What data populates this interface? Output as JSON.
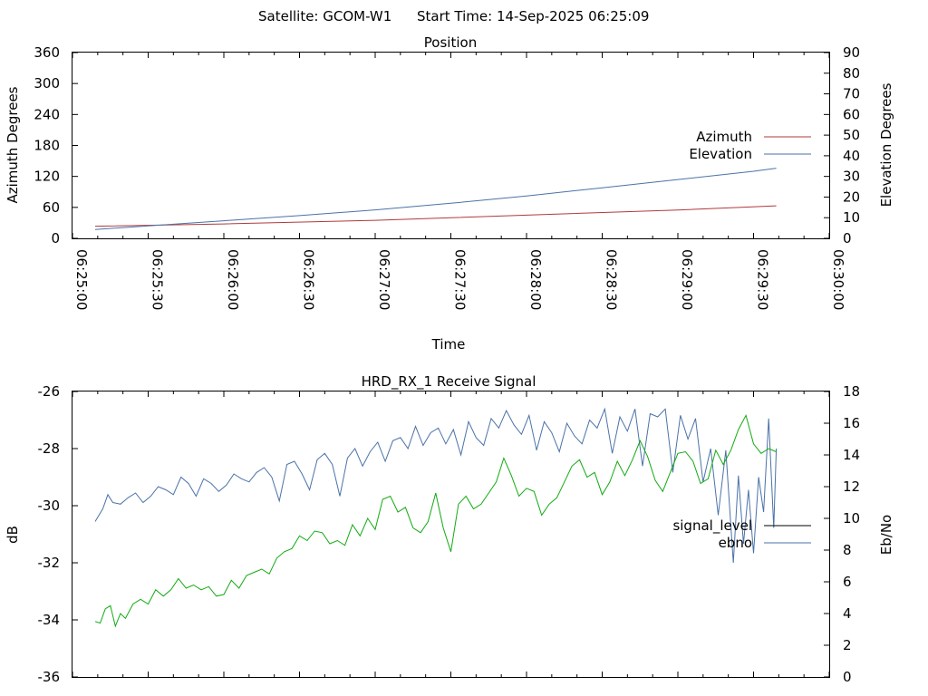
{
  "header": {
    "satellite_text": "Satellite: GCOM-W1",
    "start_time_text": "Start Time: 14-Sep-2025 06:25:09"
  },
  "chart_data": [
    {
      "type": "line",
      "title": "Position",
      "xlabel": "Time",
      "ylabel": "Azimuth Degrees",
      "y2label": "Elevation Degrees",
      "x_ticks": [
        "06:25:00",
        "06:25:30",
        "06:26:00",
        "06:26:30",
        "06:27:00",
        "06:27:30",
        "06:28:00",
        "06:28:30",
        "06:29:00",
        "06:29:30",
        "06:30:00"
      ],
      "xlim_sec": [
        0,
        300
      ],
      "ylim": [
        0,
        360
      ],
      "y_ticks": [
        0,
        60,
        120,
        180,
        240,
        300,
        360
      ],
      "y2lim": [
        0,
        90
      ],
      "y2_ticks": [
        0,
        10,
        20,
        30,
        40,
        50,
        60,
        70,
        80,
        90
      ],
      "legend_position": "right",
      "grid": false,
      "series": [
        {
          "name": "Azimuth",
          "color": "#b03a3a",
          "axis": "left",
          "x_sec": [
            9,
            60,
            120,
            180,
            240,
            279
          ],
          "values": [
            23.5,
            28,
            35,
            45,
            55,
            63
          ]
        },
        {
          "name": "Elevation",
          "color": "#4a72a8",
          "axis": "right",
          "x_sec": [
            9,
            30,
            60,
            90,
            120,
            150,
            180,
            210,
            240,
            270,
            279
          ],
          "values": [
            4.3,
            6,
            8.5,
            11,
            13.8,
            17,
            20.5,
            24.5,
            28.5,
            32.5,
            34
          ]
        }
      ]
    },
    {
      "type": "line",
      "title": "HRD_RX_1 Receive Signal",
      "ylabel": "dB",
      "y2label": "Eb/No",
      "xlim_sec": [
        0,
        300
      ],
      "ylim": [
        -36,
        -26
      ],
      "y_ticks": [
        -36,
        -34,
        -32,
        -30,
        -28,
        -26
      ],
      "y2lim": [
        0,
        18
      ],
      "y2_ticks": [
        0,
        2,
        4,
        6,
        8,
        10,
        12,
        14,
        16,
        18
      ],
      "legend_position": "right",
      "grid": false,
      "series": [
        {
          "name": "signal_level",
          "color": "#000000",
          "axis": "left",
          "x_sec": [],
          "values": []
        },
        {
          "name": "ebno",
          "color": "#4a72a8",
          "axis": "right",
          "x_sec": [
            9,
            12,
            14,
            16,
            19,
            22,
            25,
            28,
            31,
            34,
            37,
            40,
            43,
            46,
            49,
            52,
            55,
            58,
            61,
            64,
            67,
            70,
            73,
            76,
            79,
            82,
            85,
            88,
            91,
            94,
            97,
            100,
            103,
            106,
            109,
            112,
            115,
            118,
            121,
            124,
            127,
            130,
            133,
            136,
            139,
            142,
            145,
            148,
            151,
            154,
            157,
            160,
            163,
            166,
            169,
            172,
            175,
            178,
            181,
            184,
            187,
            190,
            193,
            196,
            199,
            202,
            205,
            208,
            211,
            214,
            217,
            220,
            223,
            226,
            229,
            232,
            235,
            238,
            241,
            244,
            247,
            250,
            253,
            256,
            259,
            262,
            264,
            266,
            268,
            270,
            272,
            274,
            276,
            278,
            279
          ],
          "values": [
            9.8,
            10.6,
            11.5,
            11,
            10.9,
            11.3,
            11.6,
            11,
            11.4,
            12,
            11.8,
            11.5,
            12.6,
            12.2,
            11.4,
            12.5,
            12.2,
            11.7,
            12.1,
            12.8,
            12.5,
            12.3,
            12.9,
            13.2,
            12.6,
            11.1,
            13.4,
            13.6,
            12.8,
            11.8,
            13.7,
            14.1,
            13.4,
            11.4,
            13.8,
            14.4,
            13.3,
            14.2,
            14.8,
            13.6,
            14.9,
            15.1,
            14.4,
            15.8,
            14.6,
            15.4,
            15.7,
            14.7,
            15.6,
            14,
            16.1,
            15.1,
            14.6,
            16.3,
            15.7,
            16.8,
            15.9,
            15.3,
            16.5,
            14.3,
            16.1,
            15.4,
            14.2,
            16,
            15.2,
            14.7,
            16.2,
            15.7,
            16.9,
            14.1,
            16.4,
            15.5,
            16.9,
            13.3,
            16.6,
            16.4,
            16.9,
            12.9,
            16.5,
            15,
            16.3,
            12.3,
            14.4,
            10.2,
            14.3,
            7.2,
            12.7,
            8.4,
            11.8,
            7.8,
            12.6,
            10.4,
            16.3,
            9.4,
            14.4
          ]
        },
        {
          "name": "",
          "color": "#11aa11",
          "axis": "right",
          "x_sec": [
            9,
            11,
            13,
            15,
            17,
            19,
            21,
            24,
            27,
            30,
            33,
            36,
            39,
            42,
            45,
            48,
            51,
            54,
            57,
            60,
            63,
            66,
            69,
            72,
            75,
            78,
            81,
            84,
            87,
            90,
            93,
            96,
            99,
            102,
            105,
            108,
            111,
            114,
            117,
            120,
            123,
            126,
            129,
            132,
            135,
            138,
            141,
            144,
            147,
            150,
            153,
            156,
            159,
            162,
            165,
            168,
            171,
            174,
            177,
            180,
            183,
            186,
            189,
            192,
            195,
            198,
            201,
            204,
            207,
            210,
            213,
            216,
            219,
            222,
            225,
            228,
            231,
            234,
            237,
            240,
            243,
            246,
            249,
            252,
            255,
            258,
            261,
            264,
            267,
            270,
            273,
            276,
            279
          ],
          "values": [
            3.5,
            3.4,
            4.3,
            4.5,
            3.2,
            4,
            3.7,
            4.6,
            4.9,
            4.6,
            5.5,
            5.1,
            5.5,
            6.2,
            5.6,
            5.8,
            5.5,
            5.7,
            5.1,
            5.2,
            6.1,
            5.6,
            6.4,
            6.6,
            6.8,
            6.5,
            7.5,
            7.9,
            8.1,
            8.9,
            8.6,
            9.2,
            9.1,
            8.4,
            8.6,
            8.3,
            9.6,
            8.9,
            10,
            9.3,
            11.2,
            11.4,
            10.4,
            10.7,
            9.4,
            9.1,
            9.8,
            11.6,
            9.4,
            7.9,
            10.9,
            11.4,
            10.6,
            10.9,
            11.6,
            12.3,
            13.8,
            12.7,
            11.4,
            11.9,
            11.7,
            10.2,
            10.9,
            11.3,
            12.3,
            13.3,
            13.7,
            12.6,
            12.9,
            11.5,
            12.3,
            13.6,
            12.7,
            13.7,
            14.9,
            13.9,
            12.4,
            11.7,
            12.9,
            14.1,
            14.2,
            13.6,
            12.2,
            12.5,
            14.3,
            13.4,
            14.3,
            15.6,
            16.5,
            14.7,
            14.1,
            14.4,
            14.2
          ]
        }
      ]
    }
  ]
}
